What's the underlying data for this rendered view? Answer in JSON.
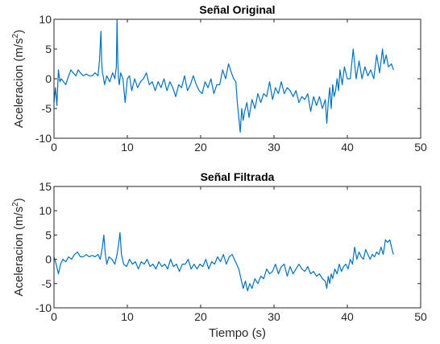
{
  "chart_data": [
    {
      "type": "line",
      "title": "Señal Original",
      "xlabel": "",
      "ylabel": "Aceleracion  (m/s",
      "ylabel_superscript": "2",
      "ylabel_suffix": ")",
      "xlim": [
        0,
        50
      ],
      "ylim": [
        -10,
        10
      ],
      "xticks": [
        0,
        10,
        20,
        30,
        40,
        50
      ],
      "yticks": [
        -10,
        -5,
        0,
        5,
        10
      ],
      "grid": false,
      "line_color": "#0072BD",
      "series": [
        {
          "x": [
            0,
            0.2,
            0.4,
            0.6,
            0.8,
            1.0,
            1.3,
            1.6,
            2.0,
            2.3,
            2.6,
            3.0,
            3.3,
            3.6,
            4.0,
            4.4,
            4.8,
            5.2,
            5.6,
            6.0,
            6.2,
            6.4,
            6.5,
            6.6,
            6.7,
            6.9,
            7.2,
            7.6,
            8.0,
            8.3,
            8.5,
            8.6,
            8.7,
            8.8,
            8.9,
            9.1,
            9.4,
            9.7,
            10.0,
            10.3,
            10.6,
            11.0,
            11.4,
            11.8,
            12.2,
            12.6,
            13.0,
            13.4,
            13.8,
            14.2,
            14.6,
            15.0,
            15.4,
            15.8,
            16.2,
            16.6,
            17.0,
            17.4,
            17.8,
            18.2,
            18.6,
            19.0,
            19.4,
            19.8,
            20.2,
            20.6,
            21.0,
            21.4,
            21.8,
            22.2,
            22.6,
            23.0,
            23.4,
            23.8,
            24.2,
            24.5,
            24.8,
            25.0,
            25.2,
            25.4,
            25.6,
            25.8,
            26.0,
            26.3,
            26.6,
            27.0,
            27.4,
            27.8,
            28.2,
            28.6,
            29.0,
            29.4,
            29.8,
            30.2,
            30.6,
            31.0,
            31.4,
            31.8,
            32.2,
            32.6,
            33.0,
            33.4,
            33.8,
            34.2,
            34.6,
            35.0,
            35.4,
            35.8,
            36.2,
            36.6,
            37.0,
            37.2,
            37.4,
            37.6,
            37.8,
            38.0,
            38.2,
            38.4,
            38.6,
            38.8,
            39.0,
            39.3,
            39.6,
            40.0,
            40.4,
            40.8,
            41.2,
            41.6,
            42.0,
            42.4,
            42.8,
            43.2,
            43.6,
            44.0,
            44.4,
            44.8,
            45.0,
            45.3,
            45.6,
            46.0,
            46.3
          ],
          "y": [
            -4,
            -1.5,
            -4.5,
            1.5,
            -0.5,
            0,
            -0.5,
            -1,
            0.5,
            1.5,
            1,
            0.5,
            1.5,
            1,
            0.5,
            0.8,
            0.5,
            0.5,
            1,
            0.5,
            3,
            8,
            3,
            1,
            0.5,
            -1,
            0.5,
            -0.5,
            1,
            0,
            2,
            10,
            3,
            0,
            -1,
            1,
            0,
            -4,
            0,
            0.5,
            -2,
            0,
            -1.5,
            -0.5,
            0,
            1,
            -1,
            -0.5,
            -2,
            -0.5,
            -1.5,
            0,
            -2,
            -0.5,
            -1.5,
            -3,
            -1,
            -1.5,
            0.5,
            -2,
            -1,
            0.5,
            -1,
            -2,
            -2.5,
            -0.5,
            -1.5,
            0,
            -2.5,
            -1,
            -1,
            1.5,
            0,
            2.5,
            1,
            0,
            -0.5,
            -4,
            -6.5,
            -9,
            -5,
            -7,
            -5.5,
            -4,
            -6.5,
            -3.5,
            -5,
            -2.5,
            -4,
            -2.5,
            -3,
            -0.5,
            -3.5,
            -1.5,
            -2.5,
            -0.5,
            -2.5,
            -1.5,
            -2,
            -3,
            -2,
            -4,
            -3,
            -3.5,
            -2.5,
            -5.5,
            -3,
            -4.5,
            -3,
            -5,
            -3.5,
            -7.5,
            -4,
            -1.5,
            -5,
            -1,
            -3,
            -2,
            0,
            -2,
            1.5,
            -1,
            2,
            0,
            0,
            5,
            0,
            3,
            0,
            2,
            0.5,
            1.5,
            0,
            4,
            1,
            5,
            2.5,
            4,
            2,
            2.5,
            1.5
          ]
        }
      ]
    },
    {
      "type": "line",
      "title": "Señal Filtrada",
      "xlabel": "Tiempo (s)",
      "ylabel": "Aceleracion  (m/s",
      "ylabel_superscript": "2",
      "ylabel_suffix": ")",
      "xlim": [
        0,
        50
      ],
      "ylim": [
        -10,
        15
      ],
      "xticks": [
        0,
        10,
        20,
        30,
        40,
        50
      ],
      "yticks": [
        -10,
        -5,
        0,
        5,
        10,
        15
      ],
      "grid": false,
      "line_color": "#0072BD",
      "series": [
        {
          "x": [
            0,
            0.3,
            0.6,
            0.9,
            1.2,
            1.6,
            2.0,
            2.4,
            2.8,
            3.2,
            3.6,
            4.0,
            4.4,
            4.8,
            5.2,
            5.6,
            6.0,
            6.3,
            6.6,
            6.8,
            7.0,
            7.2,
            7.5,
            7.9,
            8.3,
            8.6,
            8.8,
            9.0,
            9.2,
            9.5,
            9.9,
            10.3,
            10.7,
            11.1,
            11.5,
            11.9,
            12.3,
            12.7,
            13.1,
            13.5,
            13.9,
            14.3,
            14.7,
            15.1,
            15.5,
            15.9,
            16.3,
            16.7,
            17.1,
            17.5,
            17.9,
            18.3,
            18.7,
            19.1,
            19.5,
            19.9,
            20.3,
            20.7,
            21.1,
            21.5,
            21.9,
            22.3,
            22.7,
            23.1,
            23.5,
            23.9,
            24.3,
            24.6,
            24.9,
            25.2,
            25.5,
            25.8,
            26.1,
            26.4,
            26.7,
            27.0,
            27.4,
            27.8,
            28.2,
            28.6,
            29.0,
            29.4,
            29.8,
            30.2,
            30.6,
            31.0,
            31.4,
            31.8,
            32.2,
            32.6,
            33.0,
            33.4,
            33.8,
            34.2,
            34.6,
            35.0,
            35.4,
            35.8,
            36.2,
            36.6,
            37.0,
            37.2,
            37.4,
            37.6,
            37.8,
            38.0,
            38.3,
            38.6,
            38.9,
            39.2,
            39.5,
            39.8,
            40.1,
            40.4,
            40.7,
            41.0,
            41.3,
            41.6,
            41.9,
            42.2,
            42.5,
            42.8,
            43.1,
            43.4,
            43.7,
            44.0,
            44.3,
            44.6,
            44.9,
            45.2,
            45.5,
            45.8,
            46.1,
            46.3
          ],
          "y": [
            0.5,
            -1,
            -3,
            -1,
            0,
            -0.5,
            0.5,
            0,
            1,
            1.5,
            0.5,
            0.5,
            1,
            0.5,
            0.8,
            0.5,
            1,
            0,
            2.5,
            5,
            1,
            -1,
            0.5,
            0,
            -1,
            1,
            3,
            5.5,
            1,
            -1,
            -1.5,
            0,
            -1,
            -0.5,
            -2,
            -0.5,
            -1,
            0,
            -1.5,
            -1,
            -2,
            -0.5,
            -1.5,
            -1,
            -2,
            0,
            -1.5,
            -1,
            -2.5,
            -1,
            -1,
            0,
            -2,
            -1,
            -2,
            -1,
            -1.5,
            0,
            -2,
            -0.5,
            -1,
            0.5,
            -0.5,
            1,
            -1,
            0.5,
            1,
            0,
            -1,
            -2,
            -4,
            -6,
            -4.5,
            -6.5,
            -5,
            -6,
            -4,
            -5,
            -3.5,
            -4,
            -2,
            -3,
            -2.5,
            -1,
            -3,
            -1.5,
            -1,
            -3.5,
            -1.5,
            -3,
            -2,
            -1,
            -2,
            -2.5,
            -1.5,
            -3,
            -2.5,
            -3.5,
            -3,
            -4,
            -4.5,
            -6,
            -3.5,
            -5,
            -3,
            -4,
            -2,
            -3,
            -1,
            -2.5,
            -1.5,
            -1,
            -2,
            0,
            -1,
            2.5,
            0,
            1.5,
            0.5,
            0,
            2,
            1,
            0,
            1,
            0.5,
            1.5,
            1,
            2.5,
            1,
            4,
            3.5,
            4,
            2,
            1
          ]
        }
      ]
    }
  ]
}
